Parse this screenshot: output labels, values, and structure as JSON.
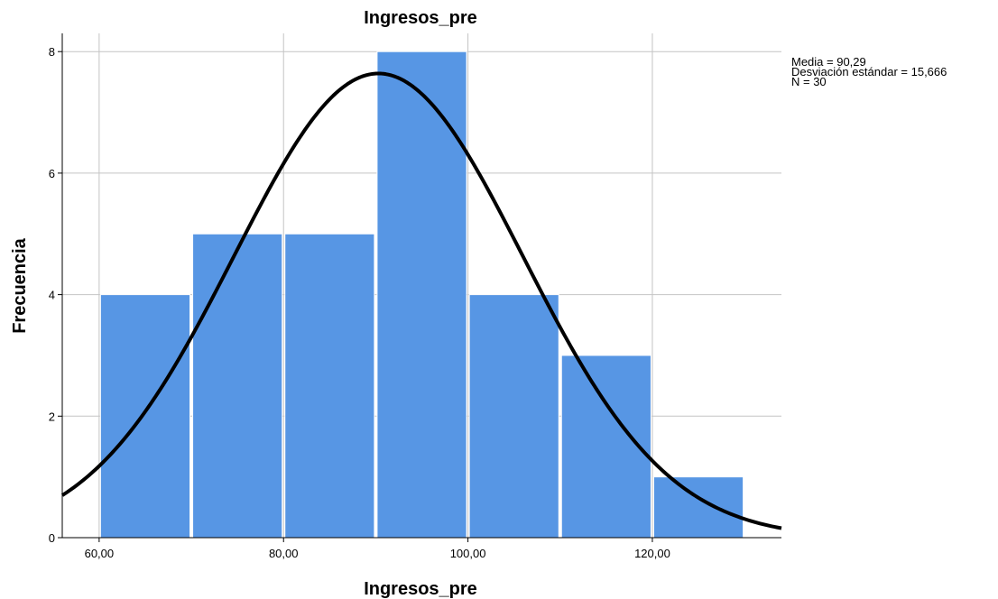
{
  "chart_data": {
    "type": "bar",
    "title": "Ingresos_pre",
    "xlabel": "Ingresos_pre",
    "ylabel": "Frecuencia",
    "bins": [
      {
        "from": 60,
        "to": 70,
        "count": 4
      },
      {
        "from": 70,
        "to": 80,
        "count": 5
      },
      {
        "from": 80,
        "to": 90,
        "count": 5
      },
      {
        "from": 90,
        "to": 100,
        "count": 8
      },
      {
        "from": 100,
        "to": 110,
        "count": 4
      },
      {
        "from": 110,
        "to": 120,
        "count": 3
      },
      {
        "from": 120,
        "to": 130,
        "count": 1
      }
    ],
    "xlim": [
      56,
      134
    ],
    "ylim": [
      0,
      8.3
    ],
    "x_ticks": [
      60,
      80,
      100,
      120
    ],
    "x_tick_labels": [
      "60,00",
      "80,00",
      "100,00",
      "120,00"
    ],
    "y_ticks": [
      0,
      2,
      4,
      6,
      8
    ],
    "y_tick_labels": [
      "0",
      "2",
      "4",
      "6",
      "8"
    ],
    "normal_curve": {
      "mean": 90.29,
      "sd": 15.666,
      "n": 30
    },
    "grid": true,
    "colors": {
      "bar": "#5796e4",
      "bar_edge": "#ffffff",
      "curve": "#000000",
      "grid": "#c4c4c4"
    }
  },
  "stats": {
    "mean_label": "Media = 90,29",
    "sd_label": "Desviación estándar = 15,666",
    "n_label": "N = 30"
  }
}
